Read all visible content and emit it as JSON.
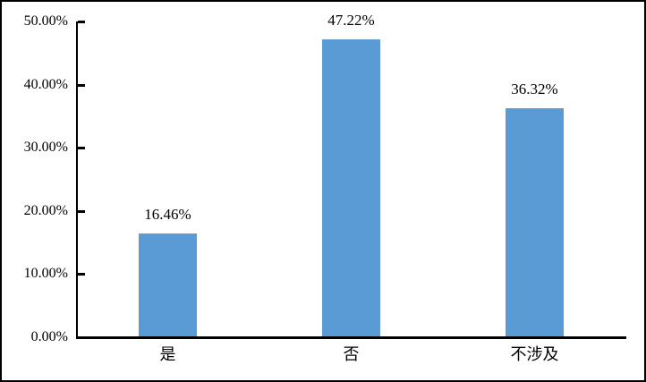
{
  "chart_data": {
    "type": "bar",
    "categories": [
      "是",
      "否",
      "不涉及"
    ],
    "values": [
      16.46,
      47.22,
      36.32
    ],
    "value_labels": [
      "16.46%",
      "47.22%",
      "36.32%"
    ],
    "y_ticks": [
      {
        "value": 0,
        "label": "0.00%"
      },
      {
        "value": 10,
        "label": "10.00%"
      },
      {
        "value": 20,
        "label": "20.00%"
      },
      {
        "value": 30,
        "label": "30.00%"
      },
      {
        "value": 40,
        "label": "40.00%"
      },
      {
        "value": 50,
        "label": "50.00%"
      }
    ],
    "ylim": [
      0,
      50
    ],
    "title": "",
    "xlabel": "",
    "ylabel": "",
    "grid": false,
    "legend": null,
    "colors": {
      "bar": "#5B9BD5",
      "axis": "#000000",
      "text": "#000000",
      "background": "#FFFFFF",
      "frame_border": "#000000"
    }
  }
}
